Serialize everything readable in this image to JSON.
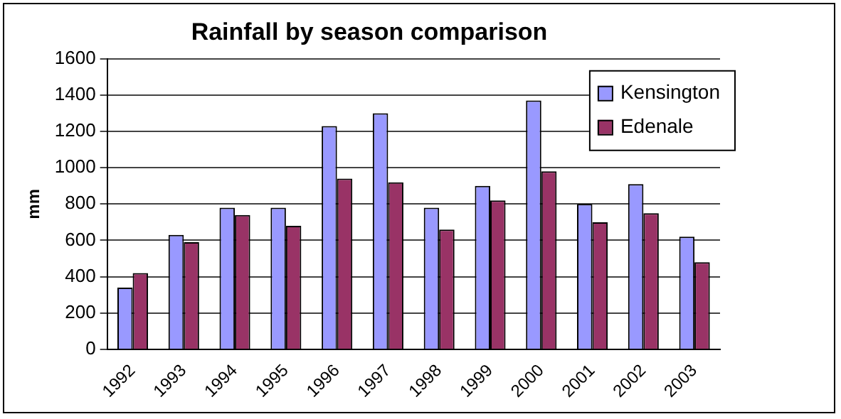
{
  "chart_data": {
    "type": "bar",
    "title": "Rainfall by season comparison",
    "ylabel": "mm",
    "categories": [
      "1992",
      "1993",
      "1994",
      "1995",
      "1996",
      "1997",
      "1998",
      "1999",
      "2000",
      "2001",
      "2002",
      "2003"
    ],
    "series": [
      {
        "name": "Kensington",
        "color": "#9999ff",
        "values": [
          340,
          630,
          780,
          780,
          1230,
          1300,
          780,
          900,
          1370,
          800,
          910,
          620
        ]
      },
      {
        "name": "Edenale",
        "color": "#993366",
        "values": [
          420,
          590,
          740,
          680,
          940,
          920,
          660,
          820,
          980,
          700,
          750,
          480
        ]
      }
    ],
    "ylim": [
      0,
      1600
    ],
    "yticks": [
      0,
      200,
      400,
      600,
      800,
      1000,
      1200,
      1400,
      1600
    ],
    "grid": "y",
    "legend": "top right"
  }
}
